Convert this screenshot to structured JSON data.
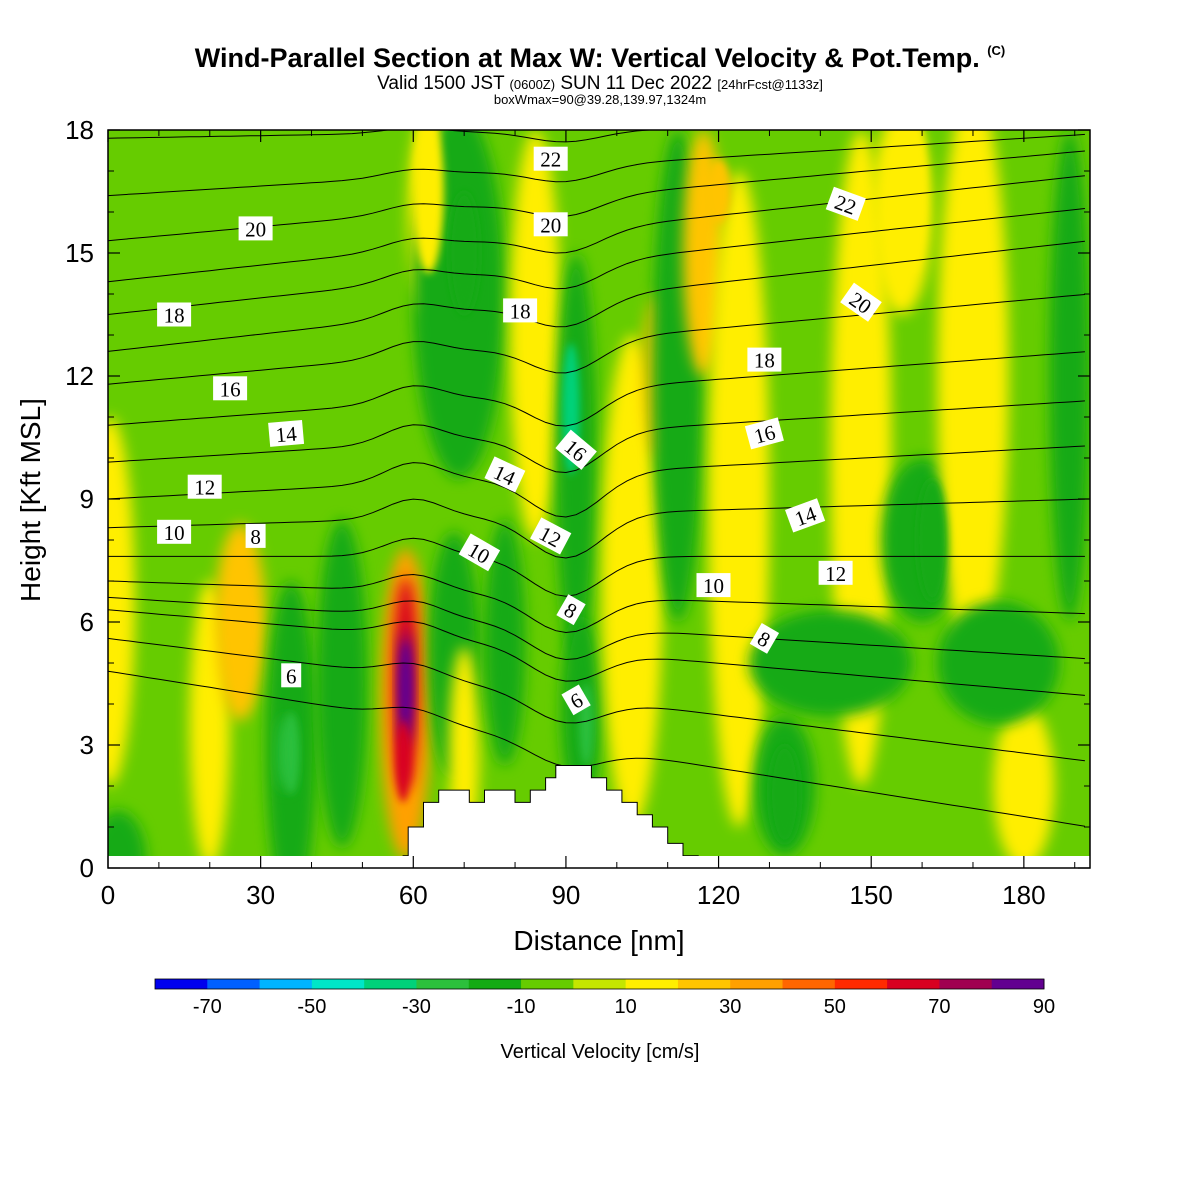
{
  "title": {
    "main": "Wind-Parallel Section at Max W: Vertical Velocity & Pot.Temp.",
    "copyright": "(C)"
  },
  "subtitle": {
    "valid": "Valid 1500 JST",
    "zulu": "(0600Z)",
    "date": "SUN 11 Dec 2022",
    "fcst": "[24hrFcst@1133z]"
  },
  "subtitle2": "boxWmax=90@39.28,139.97,1324m",
  "chart_data": {
    "type": "heatmap",
    "title": "Wind-Parallel Section at Max W: Vertical Velocity & Pot.Temp.",
    "xlabel": "Distance [nm]",
    "ylabel": "Height [Kft MSL]",
    "xlim": [
      0,
      193
    ],
    "ylim": [
      0,
      18
    ],
    "x_ticks": [
      "0",
      "30",
      "60",
      "90",
      "120",
      "150",
      "180"
    ],
    "y_ticks": [
      "0",
      "3",
      "6",
      "9",
      "12",
      "15",
      "18"
    ],
    "colorbar": {
      "label": "Vertical Velocity [cm/s]",
      "ticks": [
        "-70",
        "-50",
        "-30",
        "-10",
        "10",
        "30",
        "50",
        "70",
        "90"
      ],
      "bounds": [
        -80,
        90
      ],
      "colors": [
        "#0000ee",
        "#0060ff",
        "#00b4ff",
        "#00e6c8",
        "#00d27a",
        "#2cc03c",
        "#14aa14",
        "#66cc00",
        "#c4e600",
        "#ffee00",
        "#ffc400",
        "#ffa000",
        "#ff6600",
        "#ff2a00",
        "#d80020",
        "#a00050",
        "#620090"
      ]
    },
    "velocity_features": [
      {
        "x": 58.5,
        "y": 4.4,
        "value": 90
      },
      {
        "x": 58,
        "y": 2.6,
        "value": 60
      },
      {
        "x": 91,
        "y": 11.2,
        "value": -35
      },
      {
        "x": 94,
        "y": 3.5,
        "value": -25
      },
      {
        "x": 36,
        "y": 2.8,
        "value": -25
      },
      {
        "x": 26,
        "y": 6.0,
        "value": 25
      },
      {
        "x": 158,
        "y": 16.5,
        "value": 15
      },
      {
        "x": 120,
        "y": 16.5,
        "value": 25
      },
      {
        "x": 63,
        "y": 16.5,
        "value": 15
      },
      {
        "x": 70,
        "y": 15,
        "value": -15
      },
      {
        "x": 162,
        "y": 8.0,
        "value": -15
      },
      {
        "x": 133,
        "y": 1.8,
        "value": -12
      }
    ],
    "terrain": [
      [
        58,
        0
      ],
      [
        58,
        0.3
      ],
      [
        59,
        0.3
      ],
      [
        59,
        1.0
      ],
      [
        62,
        1.0
      ],
      [
        62,
        1.6
      ],
      [
        65,
        1.6
      ],
      [
        65,
        1.9
      ],
      [
        71,
        1.9
      ],
      [
        71,
        1.6
      ],
      [
        74,
        1.6
      ],
      [
        74,
        1.9
      ],
      [
        80,
        1.9
      ],
      [
        80,
        1.6
      ],
      [
        83,
        1.6
      ],
      [
        83,
        1.9
      ],
      [
        86,
        1.9
      ],
      [
        86,
        2.2
      ],
      [
        88,
        2.2
      ],
      [
        88,
        2.5
      ],
      [
        95,
        2.5
      ],
      [
        95,
        2.2
      ],
      [
        98,
        2.2
      ],
      [
        98,
        1.9
      ],
      [
        101,
        1.9
      ],
      [
        101,
        1.6
      ],
      [
        104,
        1.6
      ],
      [
        104,
        1.3
      ],
      [
        107,
        1.3
      ],
      [
        107,
        1.0
      ],
      [
        110,
        1.0
      ],
      [
        110,
        0.6
      ],
      [
        113,
        0.6
      ],
      [
        113,
        0.3
      ],
      [
        116,
        0.3
      ],
      [
        116,
        0
      ]
    ],
    "isentropes": {
      "levels": [
        4,
        6,
        8,
        9,
        10,
        11,
        12,
        13,
        14,
        15,
        16,
        17,
        18,
        19,
        20,
        21,
        22
      ],
      "left_height": [
        4.8,
        5.6,
        6.3,
        6.6,
        7.0,
        7.6,
        8.3,
        9.0,
        9.9,
        10.8,
        11.8,
        12.6,
        13.5,
        14.3,
        15.3,
        16.4,
        17.8
      ],
      "right_height": [
        1.0,
        2.6,
        4.2,
        5.1,
        6.2,
        7.6,
        9.0,
        10.3,
        11.4,
        12.6,
        14.0,
        15.3,
        16.1,
        16.9,
        17.5,
        17.9,
        18.2
      ]
    },
    "contour_labels": [
      {
        "text": "6",
        "x": 36,
        "y": 4.7,
        "angle": 0
      },
      {
        "text": "8",
        "x": 29,
        "y": 8.1,
        "angle": 0
      },
      {
        "text": "10",
        "x": 13,
        "y": 8.2,
        "angle": 0
      },
      {
        "text": "12",
        "x": 19,
        "y": 9.3,
        "angle": 0
      },
      {
        "text": "14",
        "x": 35,
        "y": 10.6,
        "angle": -5
      },
      {
        "text": "16",
        "x": 24,
        "y": 11.7,
        "angle": 0
      },
      {
        "text": "18",
        "x": 13,
        "y": 13.5,
        "angle": 0
      },
      {
        "text": "20",
        "x": 29,
        "y": 15.6,
        "angle": 0
      },
      {
        "text": "22",
        "x": 87,
        "y": 17.3,
        "angle": 0
      },
      {
        "text": "20",
        "x": 87,
        "y": 15.7,
        "angle": 0
      },
      {
        "text": "18",
        "x": 81,
        "y": 13.6,
        "angle": 0
      },
      {
        "text": "16",
        "x": 92,
        "y": 10.2,
        "angle": 40
      },
      {
        "text": "14",
        "x": 78,
        "y": 9.6,
        "angle": 25
      },
      {
        "text": "12",
        "x": 87,
        "y": 8.1,
        "angle": 28
      },
      {
        "text": "10",
        "x": 73,
        "y": 7.7,
        "angle": 30
      },
      {
        "text": "8",
        "x": 91,
        "y": 6.3,
        "angle": 30
      },
      {
        "text": "6",
        "x": 92,
        "y": 4.1,
        "angle": -30
      },
      {
        "text": "10",
        "x": 119,
        "y": 6.9,
        "angle": 0
      },
      {
        "text": "8",
        "x": 129,
        "y": 5.6,
        "angle": 30
      },
      {
        "text": "12",
        "x": 143,
        "y": 7.2,
        "angle": 0
      },
      {
        "text": "14",
        "x": 137,
        "y": 8.6,
        "angle": -20
      },
      {
        "text": "16",
        "x": 129,
        "y": 10.6,
        "angle": -15
      },
      {
        "text": "18",
        "x": 129,
        "y": 12.4,
        "angle": 0
      },
      {
        "text": "20",
        "x": 148,
        "y": 13.8,
        "angle": 35
      },
      {
        "text": "22",
        "x": 145,
        "y": 16.2,
        "angle": 20
      }
    ]
  }
}
